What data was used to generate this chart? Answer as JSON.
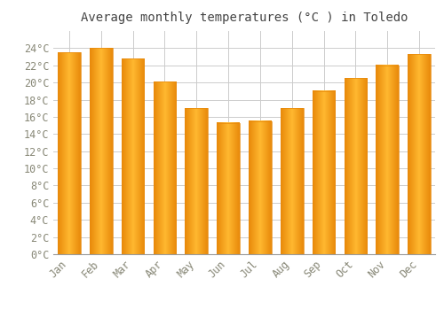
{
  "title": "Average monthly temperatures (°C ) in Toledo",
  "months": [
    "Jan",
    "Feb",
    "Mar",
    "Apr",
    "May",
    "Jun",
    "Jul",
    "Aug",
    "Sep",
    "Oct",
    "Nov",
    "Dec"
  ],
  "values": [
    23.5,
    24.0,
    22.8,
    20.1,
    17.0,
    15.3,
    15.5,
    17.0,
    19.0,
    20.5,
    22.0,
    23.3
  ],
  "bar_color_center": "#FFB830",
  "bar_color_edge": "#E8890A",
  "background_color": "#FFFFFF",
  "grid_color": "#CCCCCC",
  "text_color": "#888877",
  "ylim": [
    0,
    26
  ],
  "ytick_step": 2,
  "title_fontsize": 10,
  "tick_fontsize": 8.5
}
